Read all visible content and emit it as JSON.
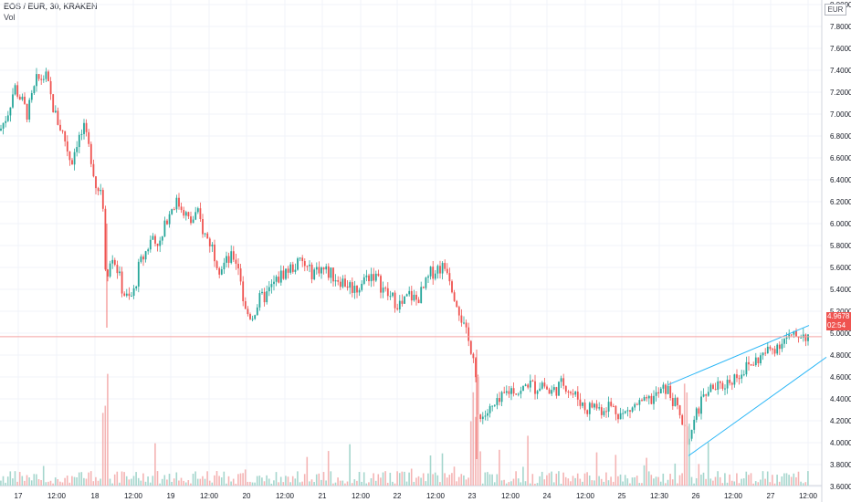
{
  "header": {
    "title": "EOS / EUR, 30, KRAKEN",
    "volume_label": "Vol"
  },
  "axis": {
    "currency": "EUR"
  },
  "last_price": {
    "price": "4.9678",
    "countdown": "02:54"
  },
  "colors": {
    "up": "#26a69a",
    "down": "#ef5350",
    "up_vol": "#a5d6cd",
    "down_vol": "#f4b4b4",
    "channel": "#29b6f6",
    "price_line": "#f5a3a3",
    "grid": "#f0f3fa"
  },
  "chart_data": {
    "type": "candlestick",
    "title": "EOS / EUR, 30, KRAKEN",
    "ylim": [
      3.5,
      8.0
    ],
    "y_ticks": [
      "8.0000",
      "7.8000",
      "7.6000",
      "7.4000",
      "7.2000",
      "7.0000",
      "6.8000",
      "6.6000",
      "6.4000",
      "6.2000",
      "6.0000",
      "5.8000",
      "5.6000",
      "5.4000",
      "5.2000",
      "5.0000",
      "4.8000",
      "4.6000",
      "4.4000",
      "4.2000",
      "4.0000",
      "3.8000",
      "3.6000"
    ],
    "x_ticks": [
      "17",
      "12:00",
      "18",
      "12:00",
      "19",
      "12:00",
      "20",
      "12:00",
      "21",
      "12:00",
      "22",
      "12:00",
      "23",
      "12:00",
      "24",
      "12:00",
      "25",
      "12:30",
      "26",
      "12:00",
      "27",
      "12:00"
    ],
    "price_path": [
      [
        0,
        6.85
      ],
      [
        8,
        7.0
      ],
      [
        16,
        7.25
      ],
      [
        22,
        7.15
      ],
      [
        30,
        7.0
      ],
      [
        40,
        7.3
      ],
      [
        50,
        7.35
      ],
      [
        60,
        7.0
      ],
      [
        70,
        6.8
      ],
      [
        78,
        6.55
      ],
      [
        84,
        6.75
      ],
      [
        92,
        6.85
      ],
      [
        100,
        6.6
      ],
      [
        106,
        6.3
      ],
      [
        112,
        6.35
      ],
      [
        116,
        5.5
      ],
      [
        122,
        5.75
      ],
      [
        128,
        5.6
      ],
      [
        134,
        5.4
      ],
      [
        140,
        5.3
      ],
      [
        146,
        5.35
      ],
      [
        152,
        5.6
      ],
      [
        160,
        5.75
      ],
      [
        168,
        5.9
      ],
      [
        176,
        5.8
      ],
      [
        184,
        6.1
      ],
      [
        192,
        6.2
      ],
      [
        200,
        6.15
      ],
      [
        208,
        6.0
      ],
      [
        216,
        6.1
      ],
      [
        224,
        5.9
      ],
      [
        232,
        5.8
      ],
      [
        240,
        5.6
      ],
      [
        248,
        5.65
      ],
      [
        256,
        5.7
      ],
      [
        262,
        5.6
      ],
      [
        268,
        5.2
      ],
      [
        276,
        5.15
      ],
      [
        284,
        5.3
      ],
      [
        292,
        5.35
      ],
      [
        300,
        5.45
      ],
      [
        310,
        5.55
      ],
      [
        320,
        5.6
      ],
      [
        330,
        5.65
      ],
      [
        340,
        5.55
      ],
      [
        350,
        5.6
      ],
      [
        360,
        5.55
      ],
      [
        370,
        5.5
      ],
      [
        380,
        5.45
      ],
      [
        390,
        5.4
      ],
      [
        400,
        5.5
      ],
      [
        408,
        5.55
      ],
      [
        416,
        5.45
      ],
      [
        424,
        5.35
      ],
      [
        432,
        5.3
      ],
      [
        440,
        5.25
      ],
      [
        448,
        5.35
      ],
      [
        456,
        5.3
      ],
      [
        464,
        5.4
      ],
      [
        472,
        5.55
      ],
      [
        480,
        5.6
      ],
      [
        490,
        5.6
      ],
      [
        496,
        5.4
      ],
      [
        502,
        5.25
      ],
      [
        508,
        5.05
      ],
      [
        514,
        4.9
      ],
      [
        520,
        4.8
      ],
      [
        524,
        4.2
      ],
      [
        530,
        4.25
      ],
      [
        538,
        4.3
      ],
      [
        546,
        4.35
      ],
      [
        554,
        4.45
      ],
      [
        562,
        4.5
      ],
      [
        570,
        4.45
      ],
      [
        578,
        4.55
      ],
      [
        586,
        4.5
      ],
      [
        594,
        4.55
      ],
      [
        602,
        4.45
      ],
      [
        610,
        4.5
      ],
      [
        618,
        4.55
      ],
      [
        626,
        4.45
      ],
      [
        634,
        4.4
      ],
      [
        642,
        4.3
      ],
      [
        650,
        4.35
      ],
      [
        658,
        4.3
      ],
      [
        666,
        4.35
      ],
      [
        674,
        4.3
      ],
      [
        682,
        4.25
      ],
      [
        690,
        4.3
      ],
      [
        698,
        4.35
      ],
      [
        706,
        4.35
      ],
      [
        714,
        4.4
      ],
      [
        722,
        4.45
      ],
      [
        730,
        4.5
      ],
      [
        736,
        4.4
      ],
      [
        742,
        4.3
      ],
      [
        748,
        4.15
      ],
      [
        754,
        3.95
      ],
      [
        760,
        4.15
      ],
      [
        766,
        4.35
      ],
      [
        772,
        4.45
      ],
      [
        780,
        4.5
      ],
      [
        788,
        4.5
      ],
      [
        796,
        4.55
      ],
      [
        804,
        4.6
      ],
      [
        812,
        4.65
      ],
      [
        820,
        4.7
      ],
      [
        828,
        4.75
      ],
      [
        836,
        4.8
      ],
      [
        844,
        4.85
      ],
      [
        852,
        4.9
      ],
      [
        860,
        4.95
      ],
      [
        868,
        4.95
      ],
      [
        876,
        5.0
      ],
      [
        882,
        4.98
      ],
      [
        886,
        4.97
      ]
    ],
    "last_price": 4.9678,
    "channel": {
      "upper": [
        [
          732,
          4.53
        ],
        [
          886,
          5.07
        ]
      ],
      "lower": [
        [
          754,
          3.88
        ],
        [
          905,
          4.78
        ]
      ]
    }
  }
}
